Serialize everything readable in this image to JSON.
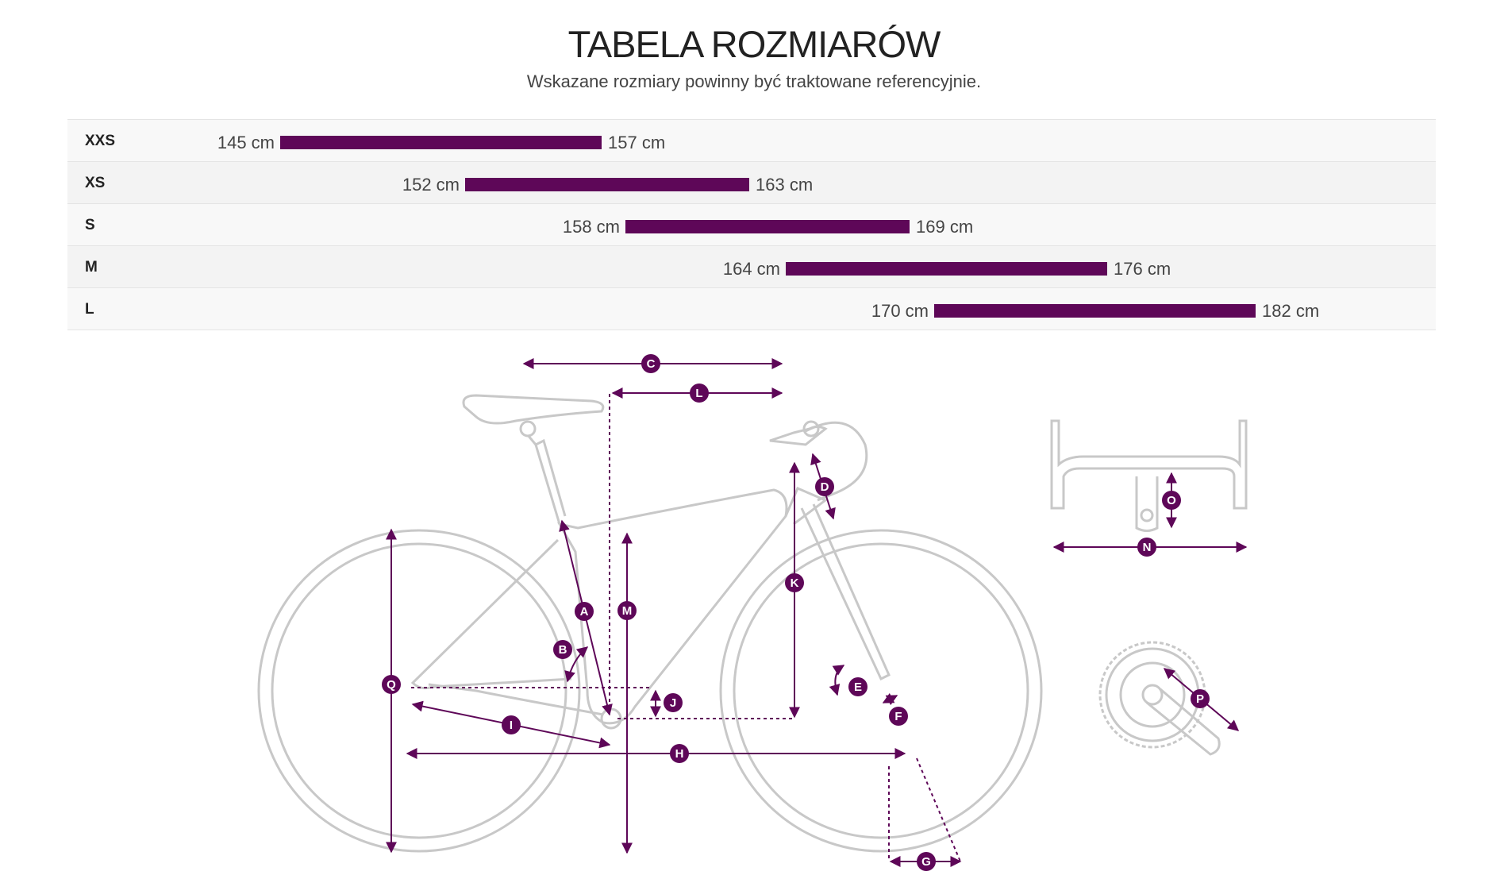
{
  "header": {
    "title": "TABELA ROZMIARÓW",
    "subtitle": "Wskazane rozmiary powinny być traktowane referencyjnie."
  },
  "size_chart": {
    "accent_color": "#5e0758",
    "rows": [
      {
        "size": "XXS",
        "min": "145 cm",
        "max": "157 cm"
      },
      {
        "size": "XS",
        "min": "152 cm",
        "max": "163 cm"
      },
      {
        "size": "S",
        "min": "158 cm",
        "max": "169 cm"
      },
      {
        "size": "M",
        "min": "164 cm",
        "max": "176 cm"
      },
      {
        "size": "L",
        "min": "170 cm",
        "max": "182 cm"
      }
    ]
  },
  "geometry_diagram": {
    "frame_color": "#c8c8c8",
    "marker_color": "#5e0758",
    "markers": {
      "A": "A",
      "B": "B",
      "C": "C",
      "D": "D",
      "E": "E",
      "F": "F",
      "G": "G",
      "H": "H",
      "I": "I",
      "J": "J",
      "K": "K",
      "L": "L",
      "M": "M",
      "N": "N",
      "O": "O",
      "P": "P",
      "Q": "Q"
    }
  }
}
